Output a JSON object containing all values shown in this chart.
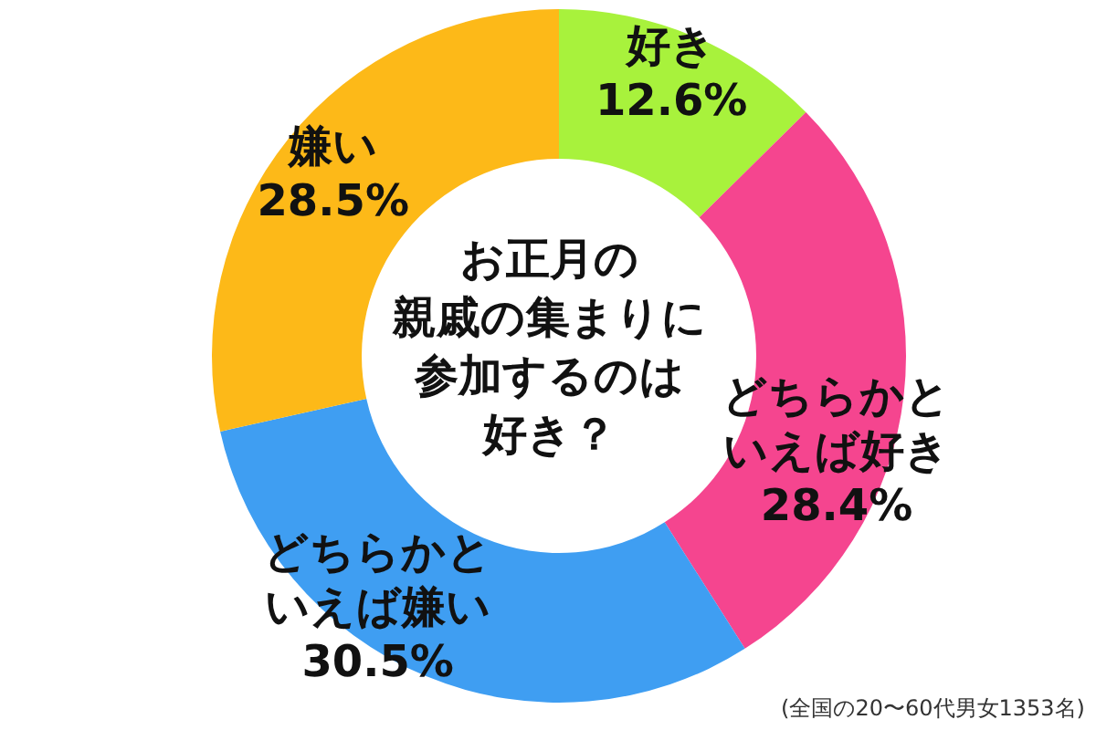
{
  "chart_data": {
    "type": "donut",
    "title": "お正月の親戚の集まりに参加するのは好き？",
    "categories": [
      "好き",
      "どちらかといえば好き",
      "どちらかといえば嫌い",
      "嫌い"
    ],
    "values": [
      12.6,
      28.4,
      30.5,
      28.5
    ],
    "colors": [
      "#a8f23c",
      "#f5458f",
      "#3f9ef2",
      "#fdb918"
    ],
    "value_labels": [
      "12.6%",
      "28.4%",
      "30.5%",
      "28.5%"
    ],
    "annotations": [
      "(全国の20〜60代男女1353名)"
    ]
  }
}
